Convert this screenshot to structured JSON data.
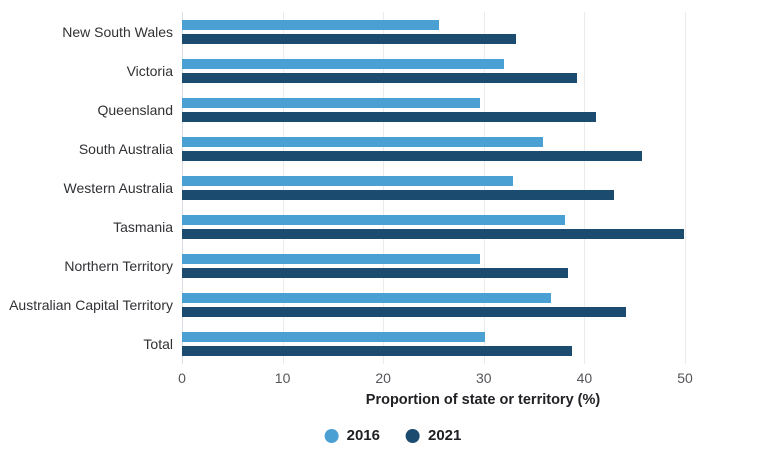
{
  "chart_data": {
    "type": "bar",
    "orientation": "horizontal",
    "title": "",
    "xlabel": "Proportion of state or territory (%)",
    "ylabel": "",
    "xlim": [
      0,
      50
    ],
    "xticks": [
      0,
      10,
      20,
      30,
      40,
      50
    ],
    "grid": true,
    "legend_position": "bottom",
    "categories": [
      "New South Wales",
      "Victoria",
      "Queensland",
      "South Australia",
      "Western Australia",
      "Tasmania",
      "Northern Territory",
      "Australian Capital Territory",
      "Total"
    ],
    "series": [
      {
        "name": "2016",
        "color": "#4A9FD3",
        "values": [
          25.5,
          32.0,
          29.6,
          35.9,
          32.9,
          38.1,
          29.6,
          36.7,
          30.1
        ]
      },
      {
        "name": "2021",
        "color": "#1B4C6F",
        "values": [
          33.2,
          39.3,
          41.2,
          45.7,
          42.9,
          49.9,
          38.4,
          44.1,
          38.8
        ]
      }
    ]
  },
  "colors": {
    "background": "#ffffff",
    "gridline": "#ebebeb",
    "axis_line": "#d9dee4",
    "tick_text": "#55565a",
    "category_text": "#303134",
    "axis_title_text": "#202124",
    "legend_text": "#1f2023"
  }
}
